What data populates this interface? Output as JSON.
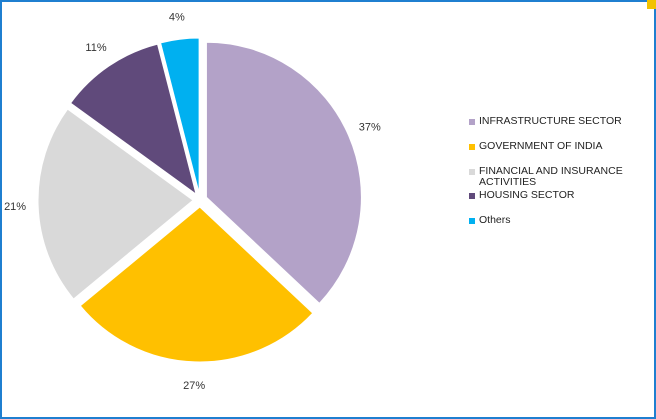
{
  "chart_data": {
    "type": "pie",
    "categories": [
      "INFRASTRUCTURE SECTOR",
      "GOVERNMENT OF INDIA",
      "FINANCIAL AND INSURANCE ACTIVITIES",
      "HOUSING SECTOR",
      "Others"
    ],
    "values": [
      37,
      27,
      21,
      11,
      4
    ],
    "labels": [
      "37%",
      "27%",
      "21%",
      "11%",
      "4%"
    ],
    "colors": [
      "#b3a2c8",
      "#ffc000",
      "#d9d9d9",
      "#604a7b",
      "#00b0f0"
    ],
    "exploded": true,
    "legend_position": "right",
    "title": "",
    "xlabel": "",
    "ylabel": ""
  },
  "frame": {
    "border_color": "#1f7fd0",
    "accent_color": "#f2c200"
  }
}
